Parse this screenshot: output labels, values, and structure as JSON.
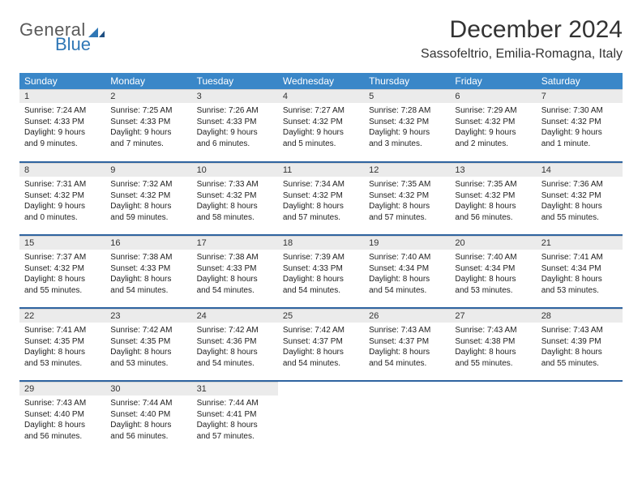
{
  "logo": {
    "text1": "General",
    "text2": "Blue"
  },
  "header": {
    "title": "December 2024",
    "location": "Sassofeltrio, Emilia-Romagna, Italy"
  },
  "dayHeaders": [
    "Sunday",
    "Monday",
    "Tuesday",
    "Wednesday",
    "Thursday",
    "Friday",
    "Saturday"
  ],
  "colors": {
    "header_bg": "#3a87c8",
    "header_fg": "#ffffff",
    "daynum_bg": "#ebebeb",
    "row_border": "#2f64a0",
    "logo_gray": "#5a5a5a",
    "logo_blue": "#2f77b6"
  },
  "weeks": [
    [
      {
        "n": "1",
        "sr": "7:24 AM",
        "ss": "4:33 PM",
        "dl": "9 hours and 9 minutes."
      },
      {
        "n": "2",
        "sr": "7:25 AM",
        "ss": "4:33 PM",
        "dl": "9 hours and 7 minutes."
      },
      {
        "n": "3",
        "sr": "7:26 AM",
        "ss": "4:33 PM",
        "dl": "9 hours and 6 minutes."
      },
      {
        "n": "4",
        "sr": "7:27 AM",
        "ss": "4:32 PM",
        "dl": "9 hours and 5 minutes."
      },
      {
        "n": "5",
        "sr": "7:28 AM",
        "ss": "4:32 PM",
        "dl": "9 hours and 3 minutes."
      },
      {
        "n": "6",
        "sr": "7:29 AM",
        "ss": "4:32 PM",
        "dl": "9 hours and 2 minutes."
      },
      {
        "n": "7",
        "sr": "7:30 AM",
        "ss": "4:32 PM",
        "dl": "9 hours and 1 minute."
      }
    ],
    [
      {
        "n": "8",
        "sr": "7:31 AM",
        "ss": "4:32 PM",
        "dl": "9 hours and 0 minutes."
      },
      {
        "n": "9",
        "sr": "7:32 AM",
        "ss": "4:32 PM",
        "dl": "8 hours and 59 minutes."
      },
      {
        "n": "10",
        "sr": "7:33 AM",
        "ss": "4:32 PM",
        "dl": "8 hours and 58 minutes."
      },
      {
        "n": "11",
        "sr": "7:34 AM",
        "ss": "4:32 PM",
        "dl": "8 hours and 57 minutes."
      },
      {
        "n": "12",
        "sr": "7:35 AM",
        "ss": "4:32 PM",
        "dl": "8 hours and 57 minutes."
      },
      {
        "n": "13",
        "sr": "7:35 AM",
        "ss": "4:32 PM",
        "dl": "8 hours and 56 minutes."
      },
      {
        "n": "14",
        "sr": "7:36 AM",
        "ss": "4:32 PM",
        "dl": "8 hours and 55 minutes."
      }
    ],
    [
      {
        "n": "15",
        "sr": "7:37 AM",
        "ss": "4:32 PM",
        "dl": "8 hours and 55 minutes."
      },
      {
        "n": "16",
        "sr": "7:38 AM",
        "ss": "4:33 PM",
        "dl": "8 hours and 54 minutes."
      },
      {
        "n": "17",
        "sr": "7:38 AM",
        "ss": "4:33 PM",
        "dl": "8 hours and 54 minutes."
      },
      {
        "n": "18",
        "sr": "7:39 AM",
        "ss": "4:33 PM",
        "dl": "8 hours and 54 minutes."
      },
      {
        "n": "19",
        "sr": "7:40 AM",
        "ss": "4:34 PM",
        "dl": "8 hours and 54 minutes."
      },
      {
        "n": "20",
        "sr": "7:40 AM",
        "ss": "4:34 PM",
        "dl": "8 hours and 53 minutes."
      },
      {
        "n": "21",
        "sr": "7:41 AM",
        "ss": "4:34 PM",
        "dl": "8 hours and 53 minutes."
      }
    ],
    [
      {
        "n": "22",
        "sr": "7:41 AM",
        "ss": "4:35 PM",
        "dl": "8 hours and 53 minutes."
      },
      {
        "n": "23",
        "sr": "7:42 AM",
        "ss": "4:35 PM",
        "dl": "8 hours and 53 minutes."
      },
      {
        "n": "24",
        "sr": "7:42 AM",
        "ss": "4:36 PM",
        "dl": "8 hours and 54 minutes."
      },
      {
        "n": "25",
        "sr": "7:42 AM",
        "ss": "4:37 PM",
        "dl": "8 hours and 54 minutes."
      },
      {
        "n": "26",
        "sr": "7:43 AM",
        "ss": "4:37 PM",
        "dl": "8 hours and 54 minutes."
      },
      {
        "n": "27",
        "sr": "7:43 AM",
        "ss": "4:38 PM",
        "dl": "8 hours and 55 minutes."
      },
      {
        "n": "28",
        "sr": "7:43 AM",
        "ss": "4:39 PM",
        "dl": "8 hours and 55 minutes."
      }
    ],
    [
      {
        "n": "29",
        "sr": "7:43 AM",
        "ss": "4:40 PM",
        "dl": "8 hours and 56 minutes."
      },
      {
        "n": "30",
        "sr": "7:44 AM",
        "ss": "4:40 PM",
        "dl": "8 hours and 56 minutes."
      },
      {
        "n": "31",
        "sr": "7:44 AM",
        "ss": "4:41 PM",
        "dl": "8 hours and 57 minutes."
      },
      {
        "n": "",
        "sr": "",
        "ss": "",
        "dl": ""
      },
      {
        "n": "",
        "sr": "",
        "ss": "",
        "dl": ""
      },
      {
        "n": "",
        "sr": "",
        "ss": "",
        "dl": ""
      },
      {
        "n": "",
        "sr": "",
        "ss": "",
        "dl": ""
      }
    ]
  ],
  "labels": {
    "sunrise": "Sunrise:",
    "sunset": "Sunset:",
    "daylight": "Daylight:"
  }
}
